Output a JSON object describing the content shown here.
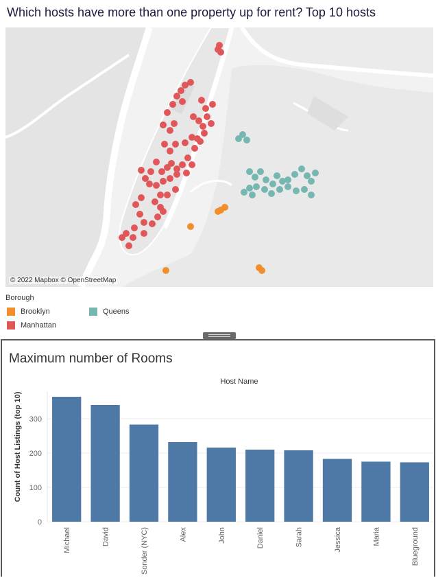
{
  "page": {
    "title": "Which hosts have more than one property up for rent? Top 10 hosts"
  },
  "map": {
    "attribution": "© 2022 Mapbox © OpenStreetMap",
    "colors": {
      "water": "#ffffff",
      "land": "#e6e6e6",
      "park": "#d9d9d9"
    }
  },
  "legend": {
    "title": "Borough",
    "items": [
      {
        "label": "Brooklyn",
        "color": "#f28e2b"
      },
      {
        "label": "Manhattan",
        "color": "#e15759"
      },
      {
        "label": "Queens",
        "color": "#76b7b2"
      }
    ]
  },
  "chart": {
    "title": "Maximum number of Rooms",
    "bar_color": "#4e79a7"
  },
  "chart_data": {
    "type": "bar",
    "title": "Maximum number of Rooms",
    "xlabel": "Host Name",
    "ylabel": "Count of Host Listings (top 10)",
    "categories": [
      "Michael",
      "David",
      "Sonder (NYC)",
      "Alex",
      "John",
      "Daniel",
      "Sarah",
      "Jessica",
      "Maria",
      "Blueground"
    ],
    "values": [
      364,
      340,
      283,
      232,
      216,
      210,
      208,
      183,
      175,
      173
    ],
    "yticks": [
      0,
      100,
      200,
      300
    ],
    "ylim": [
      0,
      380
    ],
    "grid": true
  }
}
